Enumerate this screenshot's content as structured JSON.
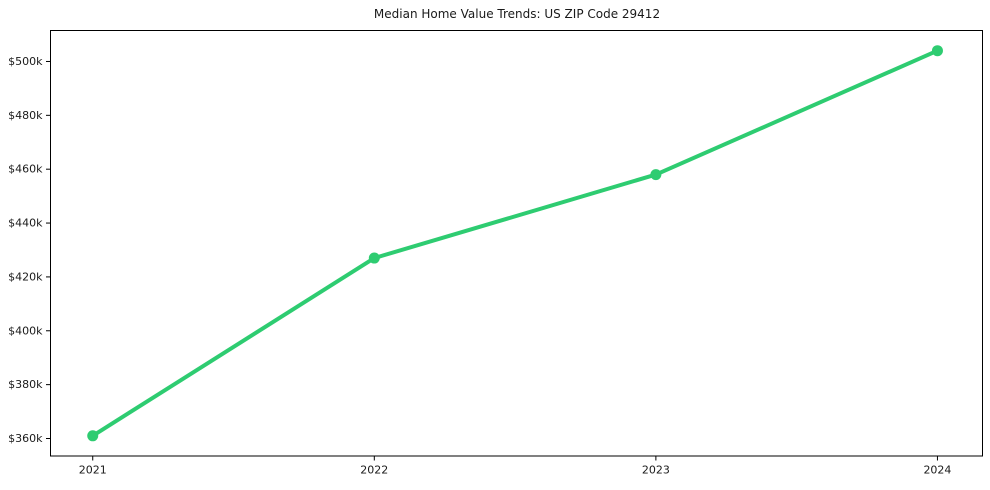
{
  "figure": {
    "background": "#ffffff"
  },
  "chart_data": {
    "type": "line",
    "title": "Median Home Value Trends: US ZIP Code 29412",
    "x_labels": [
      "2021",
      "2022",
      "2023",
      "2024"
    ],
    "x_values": [
      2021,
      2022,
      2023,
      2024
    ],
    "series": [
      {
        "values_usd_thousands": [
          361,
          427,
          458,
          504
        ],
        "color": "#2ecc71",
        "marker": "circle",
        "line_width": 4,
        "marker_radius": 5.5
      }
    ],
    "ytick_values": [
      360,
      380,
      400,
      420,
      440,
      460,
      480,
      500
    ],
    "ytick_labels": [
      "$360k",
      "$380k",
      "$400k",
      "$420k",
      "$440k",
      "$460k",
      "$480k",
      "$500k"
    ],
    "ylim": [
      353.5,
      511.5
    ],
    "xlim": [
      2020.85,
      2024.16
    ],
    "grid": false,
    "legend": "none",
    "frame": "full-box",
    "axis_color": "#000000",
    "text_color": "#1a1a1a"
  }
}
